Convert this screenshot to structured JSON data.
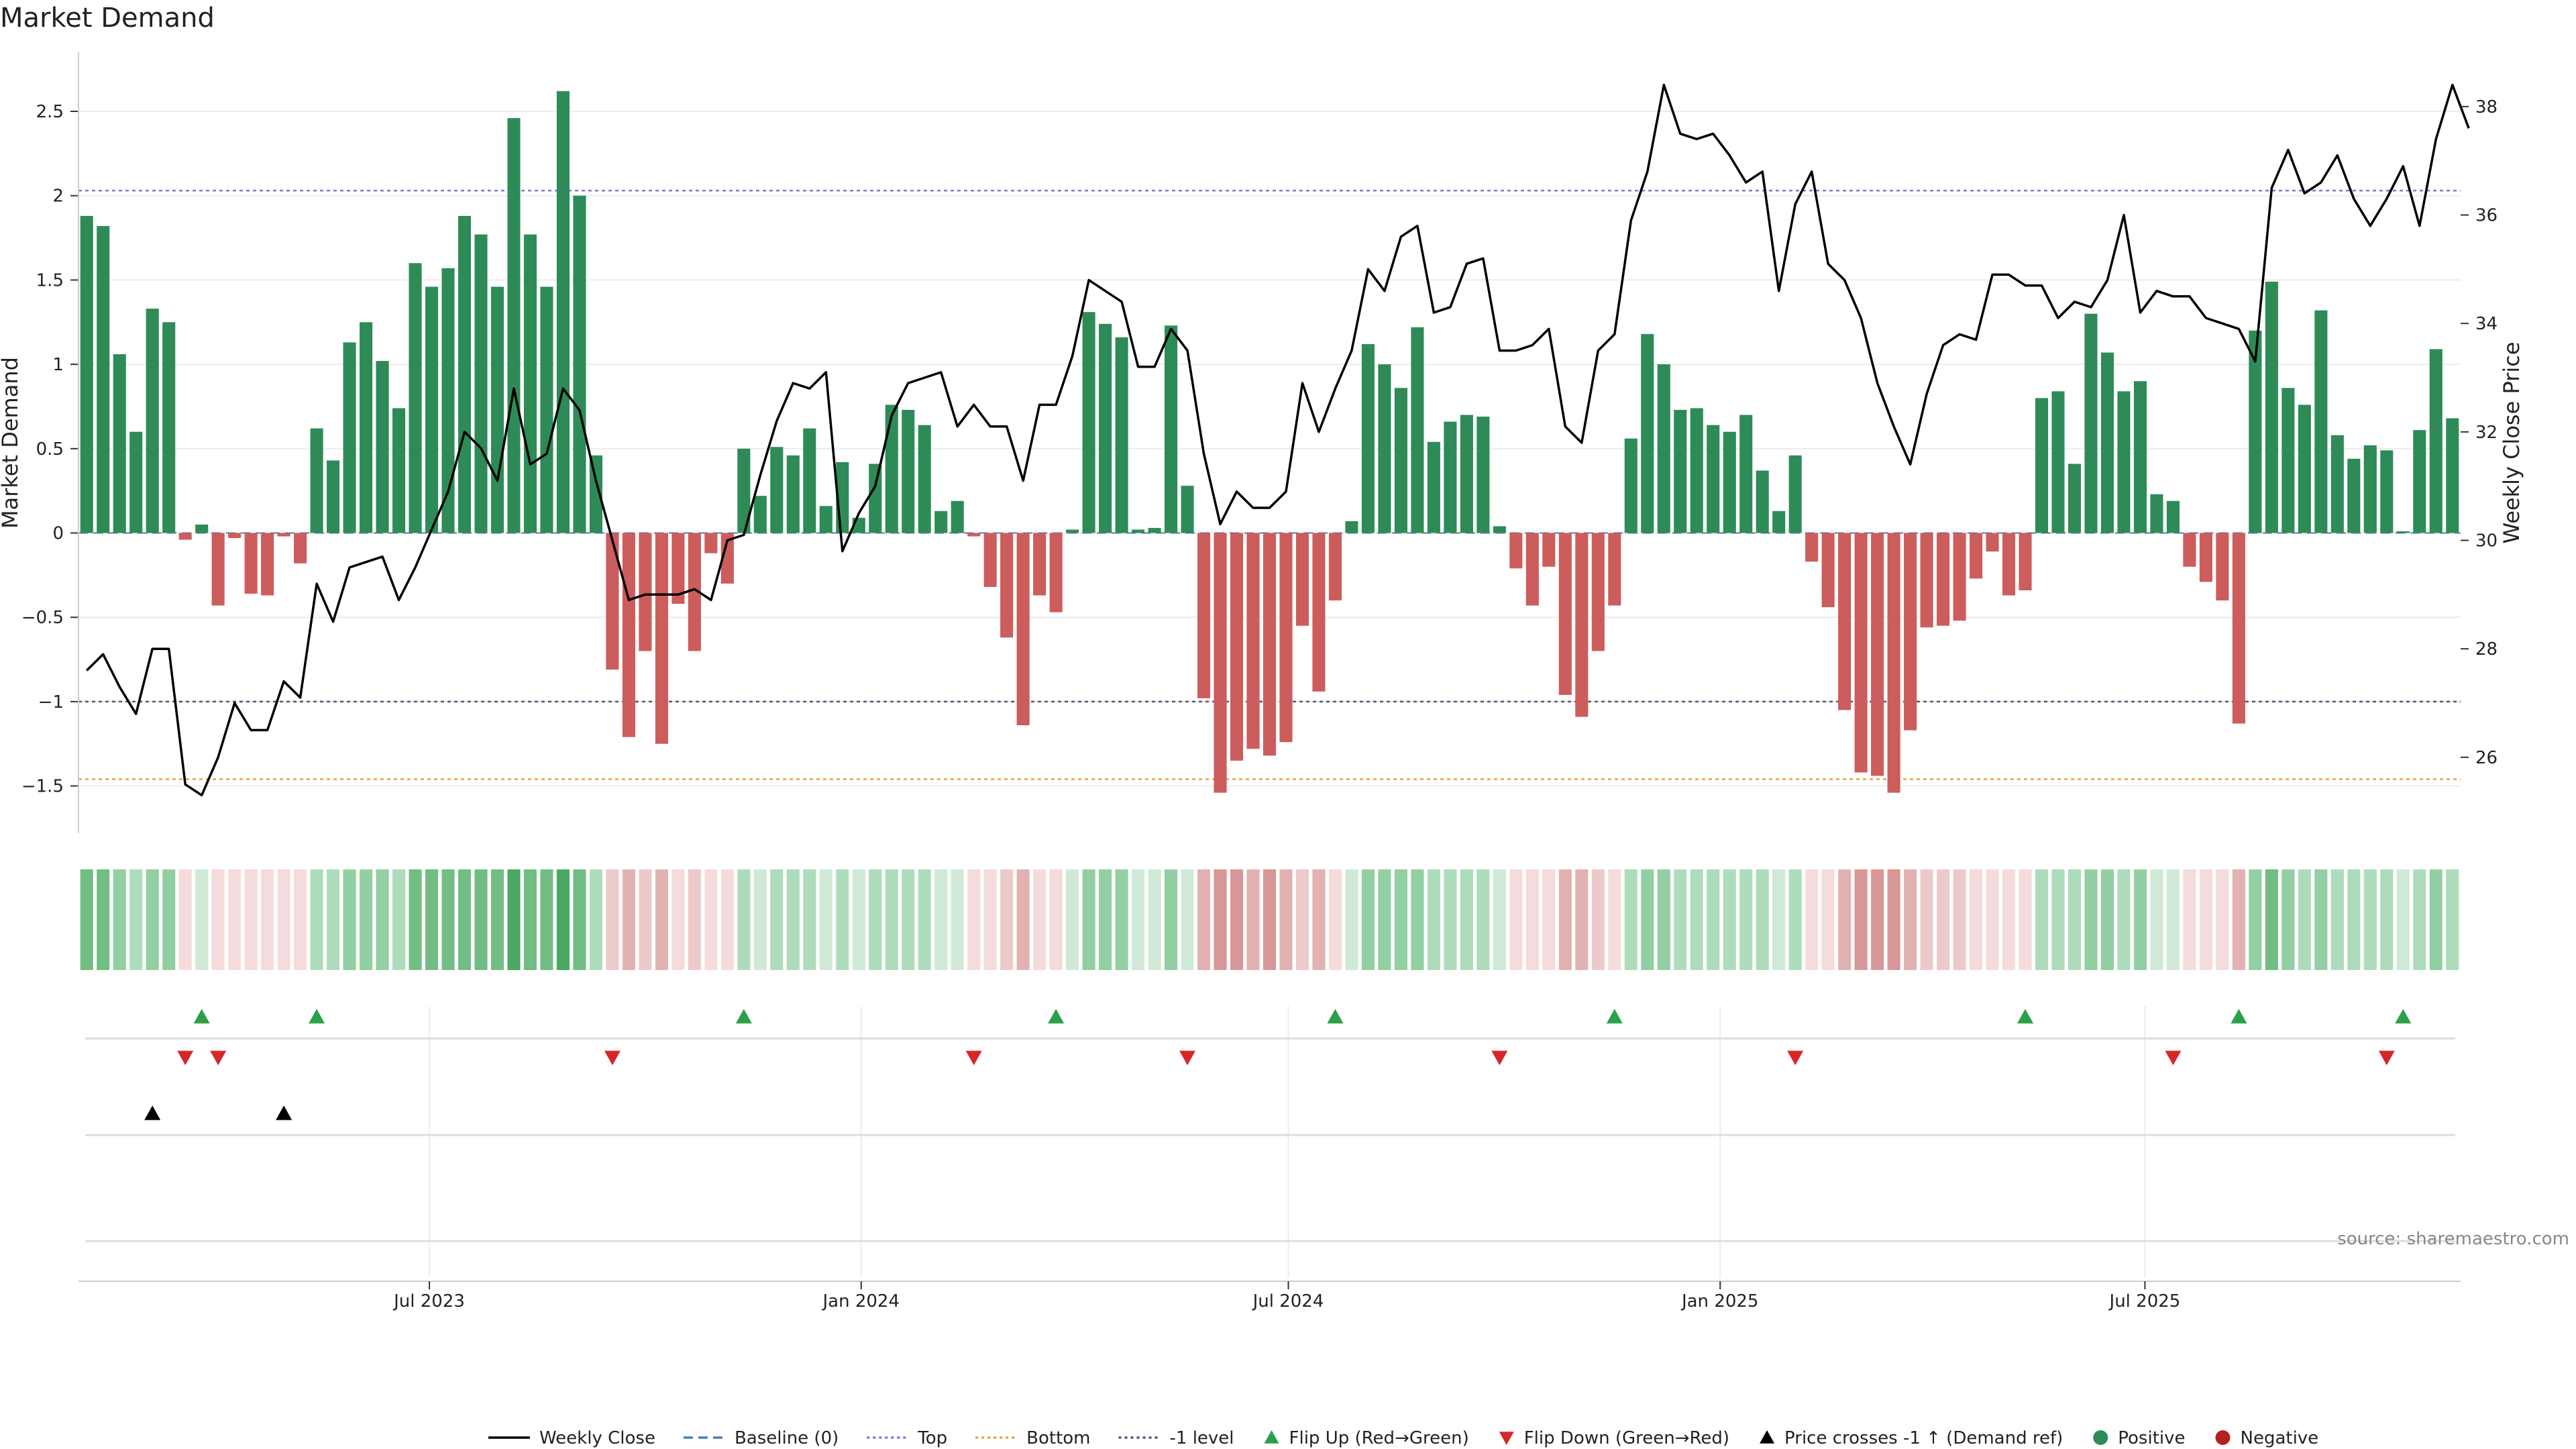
{
  "chart_data": {
    "type": "bar",
    "title": "Market Demand",
    "ylabel": "Market Demand",
    "y2label": "Weekly Close Price",
    "ylim": [
      -1.78,
      2.85
    ],
    "y_ticks": [
      2.5,
      2,
      1.5,
      1,
      0.5,
      0,
      -0.5,
      -1,
      -1.5
    ],
    "y_tick_labels": [
      "2.5",
      "2",
      "1.5",
      "1",
      "0.5",
      "0",
      "−0.5",
      "−1",
      "−1.5"
    ],
    "y2lim": [
      24.6,
      39.0
    ],
    "y2_ticks": [
      38,
      36,
      34,
      32,
      30,
      28,
      26
    ],
    "y2_tick_labels": [
      "38",
      "36",
      "34",
      "32",
      "30",
      "28",
      "26"
    ],
    "x_start": "2023-02-05",
    "x_ticks": [
      {
        "date": "2023-07-01",
        "label": "Jul 2023"
      },
      {
        "date": "2024-01-01",
        "label": "Jan 2024"
      },
      {
        "date": "2024-07-01",
        "label": "Jul 2024"
      },
      {
        "date": "2025-01-01",
        "label": "Jan 2025"
      },
      {
        "date": "2025-07-01",
        "label": "Jul 2025"
      }
    ],
    "reference_lines": [
      {
        "name": "Top",
        "value": 2.03,
        "color": "#7b7bd4"
      },
      {
        "name": "Bottom",
        "value": -1.46,
        "color": "#e3a34a"
      },
      {
        "name": "-1 level",
        "value": -1.0,
        "color": "#555577"
      }
    ],
    "demand": [
      1.88,
      1.82,
      1.06,
      0.6,
      1.33,
      1.25,
      -0.04,
      0.05,
      -0.43,
      -0.03,
      -0.36,
      -0.37,
      -0.02,
      -0.18,
      0.62,
      0.43,
      1.13,
      1.25,
      1.02,
      0.74,
      1.6,
      1.46,
      1.57,
      1.88,
      1.77,
      1.46,
      2.46,
      1.77,
      1.46,
      2.62,
      2.0,
      0.46,
      -0.81,
      -1.21,
      -0.7,
      -1.25,
      -0.42,
      -0.7,
      -0.12,
      -0.3,
      0.5,
      0.22,
      0.51,
      0.46,
      0.62,
      0.16,
      0.42,
      0.09,
      0.41,
      0.76,
      0.73,
      0.64,
      0.13,
      0.19,
      -0.02,
      -0.32,
      -0.62,
      -1.14,
      -0.37,
      -0.47,
      0.02,
      1.31,
      1.24,
      1.16,
      0.02,
      0.03,
      1.23,
      0.28,
      -0.98,
      -1.54,
      -1.35,
      -1.28,
      -1.32,
      -1.24,
      -0.55,
      -0.94,
      -0.4,
      0.07,
      1.12,
      1.0,
      0.86,
      1.22,
      0.54,
      0.66,
      0.7,
      0.69,
      0.04,
      -0.21,
      -0.43,
      -0.2,
      -0.96,
      -1.09,
      -0.7,
      -0.43,
      0.56,
      1.18,
      1.0,
      0.73,
      0.74,
      0.64,
      0.6,
      0.7,
      0.37,
      0.13,
      0.46,
      -0.17,
      -0.44,
      -1.05,
      -1.42,
      -1.44,
      -1.54,
      -1.17,
      -0.56,
      -0.55,
      -0.52,
      -0.27,
      -0.11,
      -0.37,
      -0.34,
      0.8,
      0.84,
      0.41,
      1.3,
      1.07,
      0.84,
      0.9,
      0.23,
      0.19,
      -0.2,
      -0.29,
      -0.4,
      -1.13,
      1.2,
      1.49,
      0.86,
      0.76,
      1.32,
      0.58,
      0.44,
      0.52,
      0.49,
      0.01,
      0.61,
      1.09,
      0.68
    ],
    "weekly_close": [
      27.6,
      27.9,
      27.3,
      26.8,
      28.0,
      28.0,
      25.5,
      25.3,
      26.0,
      27.0,
      26.5,
      26.5,
      27.4,
      27.1,
      29.2,
      28.5,
      29.5,
      29.6,
      29.7,
      28.9,
      29.5,
      30.2,
      30.9,
      32.0,
      31.7,
      31.1,
      32.8,
      31.4,
      31.6,
      32.8,
      32.4,
      31.1,
      30.0,
      28.9,
      29.0,
      29.0,
      29.0,
      29.1,
      28.9,
      30.0,
      30.1,
      31.2,
      32.2,
      32.9,
      32.8,
      33.1,
      29.8,
      30.5,
      31.0,
      32.3,
      32.9,
      33.0,
      33.1,
      32.1,
      32.5,
      32.1,
      32.1,
      31.1,
      32.5,
      32.5,
      33.4,
      34.8,
      34.6,
      34.4,
      33.2,
      33.2,
      33.9,
      33.5,
      31.6,
      30.3,
      30.9,
      30.6,
      30.6,
      30.9,
      32.9,
      32.0,
      32.8,
      33.5,
      35.0,
      34.6,
      35.6,
      35.8,
      34.2,
      34.3,
      35.1,
      35.2,
      33.5,
      33.5,
      33.6,
      33.9,
      32.1,
      31.8,
      33.5,
      33.8,
      35.9,
      36.8,
      38.4,
      37.5,
      37.4,
      37.5,
      37.1,
      36.6,
      36.8,
      34.6,
      36.2,
      36.8,
      35.1,
      34.8,
      34.1,
      32.9,
      32.1,
      31.4,
      32.7,
      33.6,
      33.8,
      33.7,
      34.9,
      34.9,
      34.7,
      34.7,
      34.1,
      34.4,
      34.3,
      34.8,
      36.0,
      34.2,
      34.6,
      34.5,
      34.5,
      34.1,
      34.0,
      33.9,
      33.3,
      36.5,
      37.2,
      36.4,
      36.6,
      37.1,
      36.3,
      35.8,
      36.3,
      36.9,
      35.8,
      37.4,
      38.4,
      37.6
    ],
    "series": [
      {
        "name": "Weekly Close",
        "color": "#000000"
      },
      {
        "name": "Positive",
        "color": "#2e8b57"
      },
      {
        "name": "Negative",
        "color": "#cd5c5c"
      }
    ],
    "flip_up_weeks": [
      7,
      14,
      40,
      59,
      76,
      93,
      118,
      131,
      141
    ],
    "flip_down_weeks": [
      6,
      8,
      32,
      54,
      67,
      86,
      104,
      127,
      140
    ],
    "price_cross_weeks": [
      4,
      12
    ],
    "legend_position": "bottom-center",
    "legend": [
      {
        "label": "Weekly Close",
        "kind": "line",
        "color": "#000000",
        "dash": ""
      },
      {
        "label": "Baseline (0)",
        "kind": "line",
        "color": "#4a7fb5",
        "dash": "14 8"
      },
      {
        "label": "Top",
        "kind": "line",
        "color": "#7b7bd4",
        "dash": "4 5"
      },
      {
        "label": "Bottom",
        "kind": "line",
        "color": "#e3a34a",
        "dash": "4 5"
      },
      {
        "label": "-1 level",
        "kind": "line",
        "color": "#555577",
        "dash": "4 5"
      },
      {
        "label": "Flip Up (Red→Green)",
        "kind": "tri-up",
        "color": "#2ca048"
      },
      {
        "label": "Flip Down (Green→Red)",
        "kind": "tri-down",
        "color": "#d62728"
      },
      {
        "label": "Price crosses -1 ↑ (Demand ref)",
        "kind": "tri-up",
        "color": "#000000"
      },
      {
        "label": "Positive",
        "kind": "dot",
        "color": "#2e8b57"
      },
      {
        "label": "Negative",
        "kind": "dot",
        "color": "#b22222"
      }
    ],
    "source": "source: sharemaestro.com"
  }
}
